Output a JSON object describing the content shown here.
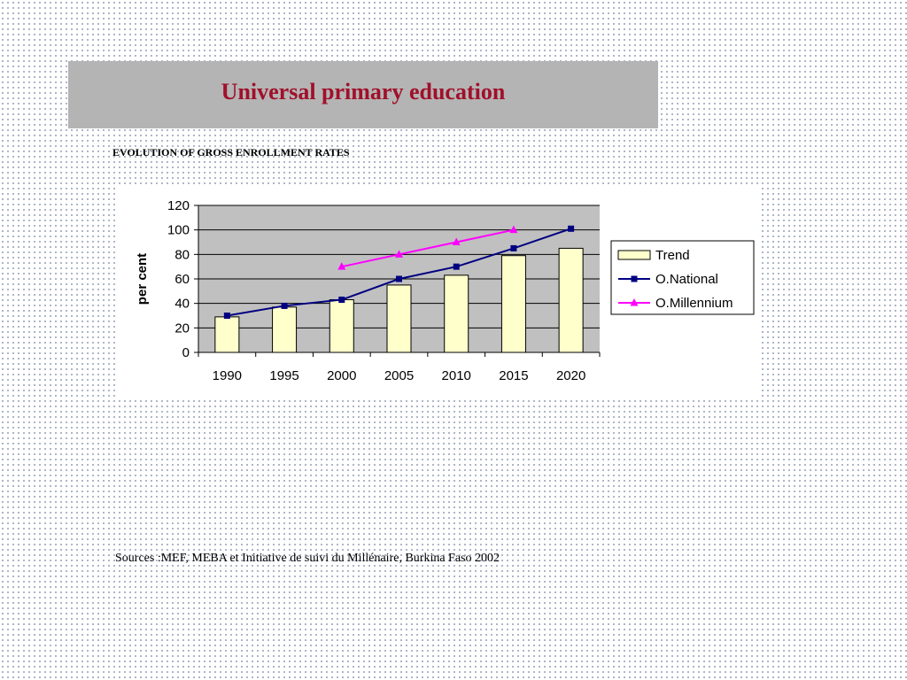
{
  "header": {
    "title": "Universal primary education"
  },
  "subtitle": "EVOLUTION OF GROSS ENROLLMENT RATES",
  "sources": "Sources :MEF, MEBA et Initiative de suivi du Millénaire, Burkina Faso 2002",
  "chart_data": {
    "type": "bar",
    "title": "",
    "xlabel": "",
    "ylabel": "per cent",
    "categories": [
      "1990",
      "1995",
      "2000",
      "2005",
      "2010",
      "2015",
      "2020"
    ],
    "ylim": [
      0,
      120
    ],
    "yticks": [
      0,
      20,
      40,
      60,
      80,
      100,
      120
    ],
    "grid": true,
    "legend_position": "right",
    "series": [
      {
        "name": "Trend",
        "kind": "bar",
        "color": "#ffffcc",
        "values": [
          29,
          37,
          43,
          55,
          63,
          79,
          85
        ]
      },
      {
        "name": "O.National",
        "kind": "line",
        "marker": "square",
        "color": "#000080",
        "values": [
          30,
          38,
          43,
          60,
          70,
          85,
          101
        ]
      },
      {
        "name": "O.Millennium",
        "kind": "line",
        "marker": "triangle",
        "color": "#ff00ff",
        "values": [
          null,
          null,
          70,
          80,
          90,
          100,
          null
        ]
      }
    ]
  }
}
